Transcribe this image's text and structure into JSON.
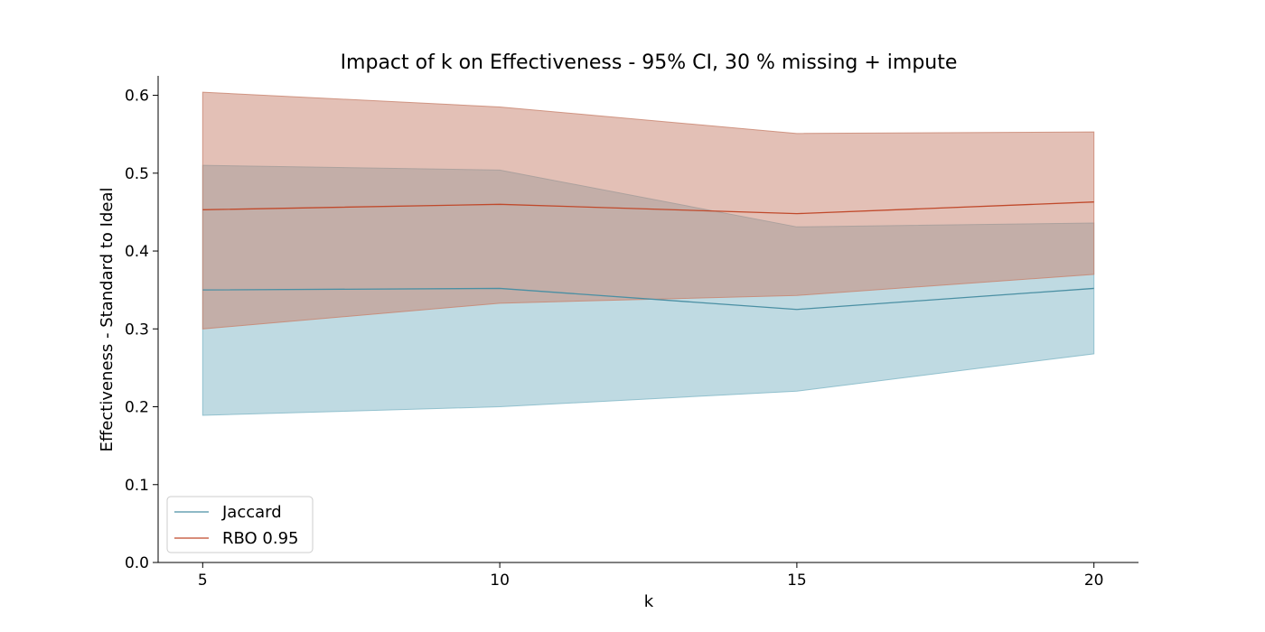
{
  "chart_data": {
    "type": "area",
    "title": "Impact of k on Effectiveness - 95% CI, 30 % missing + impute",
    "xlabel": "k",
    "ylabel": "Effectiveness - Standard to Ideal",
    "x": [
      5,
      10,
      15,
      20
    ],
    "xlim": [
      4.25,
      20.75
    ],
    "ylim": [
      0.0,
      0.625
    ],
    "xticks": [
      "5",
      "10",
      "15",
      "20"
    ],
    "yticks": [
      "0.0",
      "0.1",
      "0.2",
      "0.3",
      "0.4",
      "0.5",
      "0.6"
    ],
    "grid": false,
    "legend_position": "lower-left",
    "series": [
      {
        "name": "Jaccard",
        "values": [
          0.35,
          0.352,
          0.325,
          0.352
        ],
        "lower": [
          0.189,
          0.2,
          0.22,
          0.268
        ],
        "upper": [
          0.51,
          0.504,
          0.431,
          0.436
        ],
        "color": "#4a8fa3",
        "fill": "#7fb6c6"
      },
      {
        "name": "RBO 0.95",
        "values": [
          0.453,
          0.46,
          0.448,
          0.463
        ],
        "lower": [
          0.3,
          0.333,
          0.343,
          0.37
        ],
        "upper": [
          0.604,
          0.585,
          0.551,
          0.553
        ],
        "color": "#c0492b",
        "fill": "#c8826d"
      }
    ]
  }
}
